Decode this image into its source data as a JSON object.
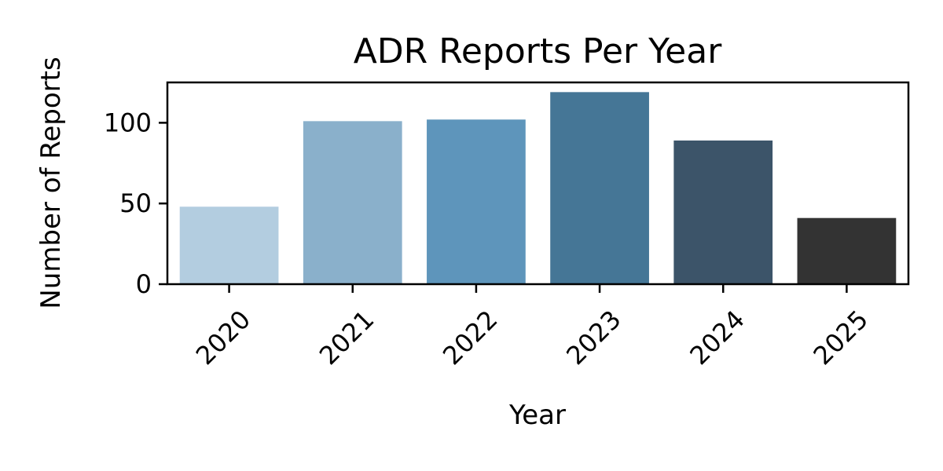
{
  "chart_data": {
    "type": "bar",
    "title": "ADR Reports Per Year",
    "xlabel": "Year",
    "ylabel": "Number of Reports",
    "categories": [
      "2020",
      "2021",
      "2022",
      "2023",
      "2024",
      "2025"
    ],
    "values": [
      48,
      101,
      102,
      119,
      89,
      41
    ],
    "colors": [
      "#b3cde0",
      "#8ab0cb",
      "#5e95bb",
      "#457696",
      "#3c5469",
      "#333333"
    ],
    "ylim": [
      0,
      125
    ],
    "yticks": [
      0,
      50,
      100
    ],
    "grid": false,
    "legend": "none"
  }
}
